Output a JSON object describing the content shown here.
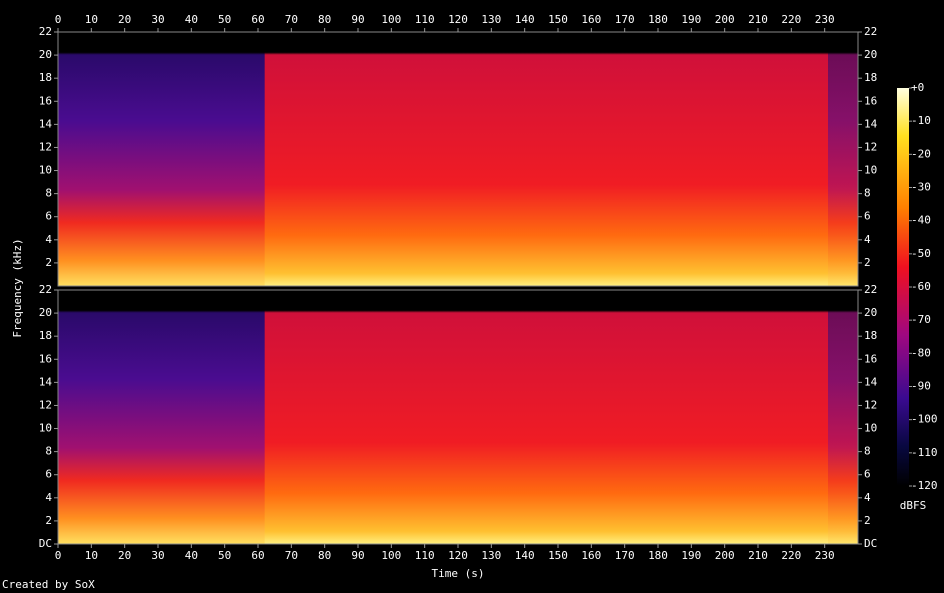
{
  "chart_data": {
    "type": "spectrogram",
    "x_label": "Time (s)",
    "y_label": "Frequency (kHz)",
    "xlim": [
      0,
      240
    ],
    "xticks": [
      0,
      10,
      20,
      30,
      40,
      50,
      60,
      70,
      80,
      90,
      100,
      110,
      120,
      130,
      140,
      150,
      160,
      170,
      180,
      190,
      200,
      210,
      220,
      230
    ],
    "channels": [
      {
        "ylim": [
          0,
          22
        ],
        "yticks": [
          2,
          4,
          6,
          8,
          10,
          12,
          14,
          16,
          18,
          20,
          22
        ]
      },
      {
        "ylim": [
          0,
          22
        ],
        "yticks": [
          {
            "value": 0,
            "label": "DC"
          },
          2,
          4,
          6,
          8,
          10,
          12,
          14,
          16,
          18,
          20,
          22
        ]
      }
    ],
    "colorbar": {
      "label": "dBFS",
      "lim": [
        -120,
        0
      ],
      "ticks": [
        {
          "value": 0,
          "label": "+0"
        },
        -10,
        -20,
        -30,
        -40,
        -50,
        -60,
        -70,
        -80,
        -90,
        -100,
        -110,
        -120
      ]
    },
    "footer": "Created by SoX"
  }
}
